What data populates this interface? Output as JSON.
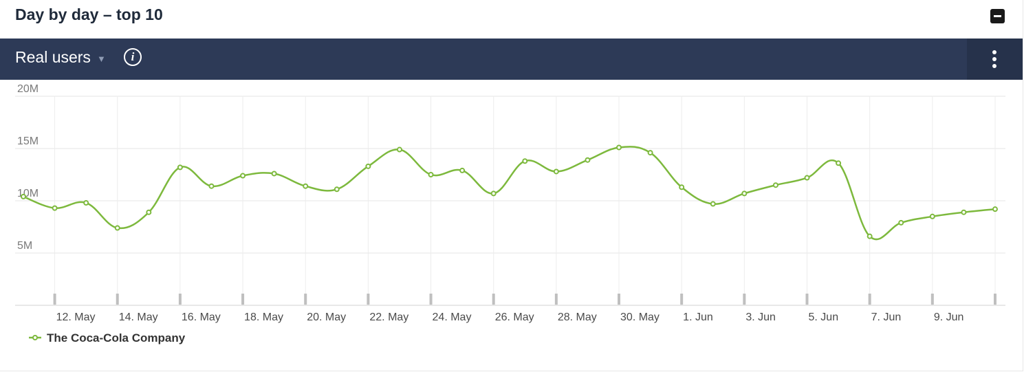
{
  "header": {
    "title": "Day by day – top 10",
    "collapse_icon": "minus-square-icon"
  },
  "toolbar": {
    "metric_label": "Real users",
    "dropdown_icon": "caret-down-icon",
    "info_icon": "info-icon",
    "info_glyph": "i",
    "menu_icon": "kebab-menu-icon"
  },
  "colors": {
    "series": "#7db93d",
    "toolbar_bg": "#2d3a57"
  },
  "chart_data": {
    "type": "line",
    "title": "",
    "xlabel": "",
    "ylabel": "",
    "ylim": [
      0,
      20000000
    ],
    "grid": true,
    "legend_position": "bottom-left",
    "y_ticks": [
      {
        "value": 5000000,
        "label": "5M"
      },
      {
        "value": 10000000,
        "label": "10M"
      },
      {
        "value": 15000000,
        "label": "15M"
      },
      {
        "value": 20000000,
        "label": "20M"
      }
    ],
    "x": [
      "11. May",
      "12. May",
      "13. May",
      "14. May",
      "15. May",
      "16. May",
      "17. May",
      "18. May",
      "19. May",
      "20. May",
      "21. May",
      "22. May",
      "23. May",
      "24. May",
      "25. May",
      "26. May",
      "27. May",
      "28. May",
      "29. May",
      "30. May",
      "31. May",
      "1. Jun",
      "2. Jun",
      "3. Jun",
      "4. Jun",
      "5. Jun",
      "6. Jun",
      "7. Jun",
      "8. Jun",
      "9. Jun",
      "10. Jun",
      "11. Jun"
    ],
    "x_tick_labels": [
      "12. May",
      "14. May",
      "16. May",
      "18. May",
      "20. May",
      "22. May",
      "24. May",
      "26. May",
      "28. May",
      "30. May",
      "1. Jun",
      "3. Jun",
      "5. Jun",
      "7. Jun",
      "9. Jun"
    ],
    "series": [
      {
        "name": "The Coca-Cola Company",
        "values": [
          10400000,
          9300000,
          9800000,
          7400000,
          8900000,
          13200000,
          11400000,
          12400000,
          12600000,
          11400000,
          11100000,
          13300000,
          14900000,
          12500000,
          12900000,
          10700000,
          13800000,
          12800000,
          13900000,
          15100000,
          14600000,
          11300000,
          9700000,
          10700000,
          11500000,
          12200000,
          13600000,
          6600000,
          7900000,
          8500000,
          8900000,
          9200000
        ]
      }
    ]
  }
}
